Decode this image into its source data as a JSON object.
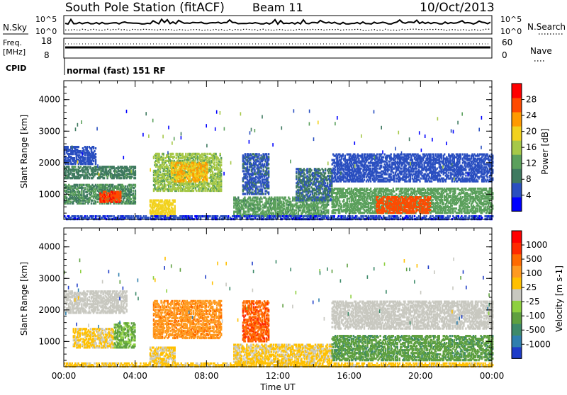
{
  "header": {
    "station": "South Pole Station (fitACF)",
    "beam": "Beam 11",
    "date": "10/Oct/2013",
    "mode": "normal (fast) 151 RF"
  },
  "summary_panels": {
    "nsky_label": "N.Sky",
    "nsky_ticks": [
      "10^5",
      "10^0"
    ],
    "nsearch_label": "N.Search",
    "nsearch_ticks": [
      "10^5",
      "10^0"
    ],
    "freq_label": "Freq.",
    "freq_unit": "[MHz]",
    "freq_ticks": [
      "18",
      "8"
    ],
    "nave_label": "Nave",
    "nave_ticks": [
      "60",
      "0"
    ],
    "cpid_label": "CPID"
  },
  "chart_data": [
    {
      "type": "heatmap",
      "name": "power",
      "ylabel": "Slant Range [km]",
      "xlabel": "",
      "x_range_hours": [
        0,
        24
      ],
      "ylim": [
        200,
        4600
      ],
      "yticks": [
        "1000",
        "2000",
        "3000",
        "4000"
      ],
      "colorbar_label": "Power [dB]",
      "colorbar_ticks": [
        "28",
        "24",
        "20",
        "16",
        "12",
        "8",
        "4"
      ],
      "colorbar_colors": [
        "#0000ff",
        "#2a4fc0",
        "#3f7a60",
        "#5ba05c",
        "#a6c848",
        "#f2d21e",
        "#ff9a00",
        "#ff4a00",
        "#ff0000"
      ],
      "value_range": [
        0,
        30
      ],
      "regions": [
        {
          "t0": 0.0,
          "t1": 1.8,
          "r0": 1950,
          "r1": 2500,
          "v": 5
        },
        {
          "t0": 0.0,
          "t1": 4.0,
          "r0": 700,
          "r1": 1300,
          "v": 10
        },
        {
          "t0": 2.0,
          "t1": 3.2,
          "r0": 750,
          "r1": 1100,
          "v": 26
        },
        {
          "t0": 0.0,
          "t1": 4.0,
          "r0": 1500,
          "r1": 1900,
          "v": 9
        },
        {
          "t0": 5.0,
          "t1": 8.8,
          "r0": 1100,
          "r1": 2300,
          "v": 14
        },
        {
          "t0": 6.0,
          "t1": 8.0,
          "r0": 1400,
          "r1": 2000,
          "v": 20
        },
        {
          "t0": 4.8,
          "t1": 6.2,
          "r0": 300,
          "r1": 800,
          "v": 18
        },
        {
          "t0": 10.0,
          "t1": 11.5,
          "r0": 1000,
          "r1": 2300,
          "v": 6
        },
        {
          "t0": 9.5,
          "t1": 14.8,
          "r0": 300,
          "r1": 900,
          "v": 11
        },
        {
          "t0": 13.0,
          "t1": 15.0,
          "r0": 800,
          "r1": 1800,
          "v": 7
        },
        {
          "t0": 15.0,
          "t1": 24.0,
          "r0": 400,
          "r1": 1200,
          "v": 12
        },
        {
          "t0": 17.5,
          "t1": 20.5,
          "r0": 400,
          "r1": 900,
          "v": 25
        },
        {
          "t0": 15.0,
          "t1": 24.0,
          "r0": 1400,
          "r1": 2300,
          "v": 5
        },
        {
          "t0": 0.0,
          "t1": 24.0,
          "r0": 200,
          "r1": 320,
          "v": 4
        }
      ]
    },
    {
      "type": "heatmap",
      "name": "velocity",
      "ylabel": "Slant Range [km]",
      "xlabel": "Time UT",
      "x_range_hours": [
        0,
        24
      ],
      "xticks": [
        "00:00",
        "04:00",
        "08:00",
        "12:00",
        "16:00",
        "20:00",
        "00:00"
      ],
      "ylim": [
        200,
        4600
      ],
      "yticks": [
        "1000",
        "2000",
        "3000",
        "4000"
      ],
      "colorbar_label": "Velocity [m s-1]",
      "colorbar_ticks": [
        "1000",
        "500",
        "100",
        "25",
        "-25",
        "-100",
        "-500",
        "-1000"
      ],
      "colorbar_colors": [
        "#1e3cc8",
        "#2f7fae",
        "#3e8a6a",
        "#5fa040",
        "#8ed040",
        "#c8c8c0",
        "#ffc000",
        "#ff9a20",
        "#ff6a00",
        "#ff2a00",
        "#ff0000"
      ],
      "value_range": [
        -1000,
        1000
      ],
      "regions": [
        {
          "t0": 0.0,
          "t1": 3.5,
          "r0": 1900,
          "r1": 2600,
          "v": 0
        },
        {
          "t0": 0.5,
          "t1": 2.8,
          "r0": 800,
          "r1": 1400,
          "v": 120
        },
        {
          "t0": 2.8,
          "t1": 4.0,
          "r0": 800,
          "r1": 1600,
          "v": -300
        },
        {
          "t0": 5.0,
          "t1": 8.8,
          "r0": 1100,
          "r1": 2300,
          "v": 400
        },
        {
          "t0": 4.8,
          "t1": 6.2,
          "r0": 300,
          "r1": 800,
          "v": 100
        },
        {
          "t0": 10.0,
          "t1": 11.5,
          "r0": 1000,
          "r1": 2300,
          "v": 600
        },
        {
          "t0": 9.5,
          "t1": 15.0,
          "r0": 300,
          "r1": 900,
          "v": 120
        },
        {
          "t0": 15.0,
          "t1": 24.0,
          "r0": 400,
          "r1": 1200,
          "v": -400
        },
        {
          "t0": 15.0,
          "t1": 24.0,
          "r0": 1400,
          "r1": 2300,
          "v": 0
        },
        {
          "t0": 0.0,
          "t1": 24.0,
          "r0": 200,
          "r1": 320,
          "v": 150
        }
      ]
    }
  ]
}
